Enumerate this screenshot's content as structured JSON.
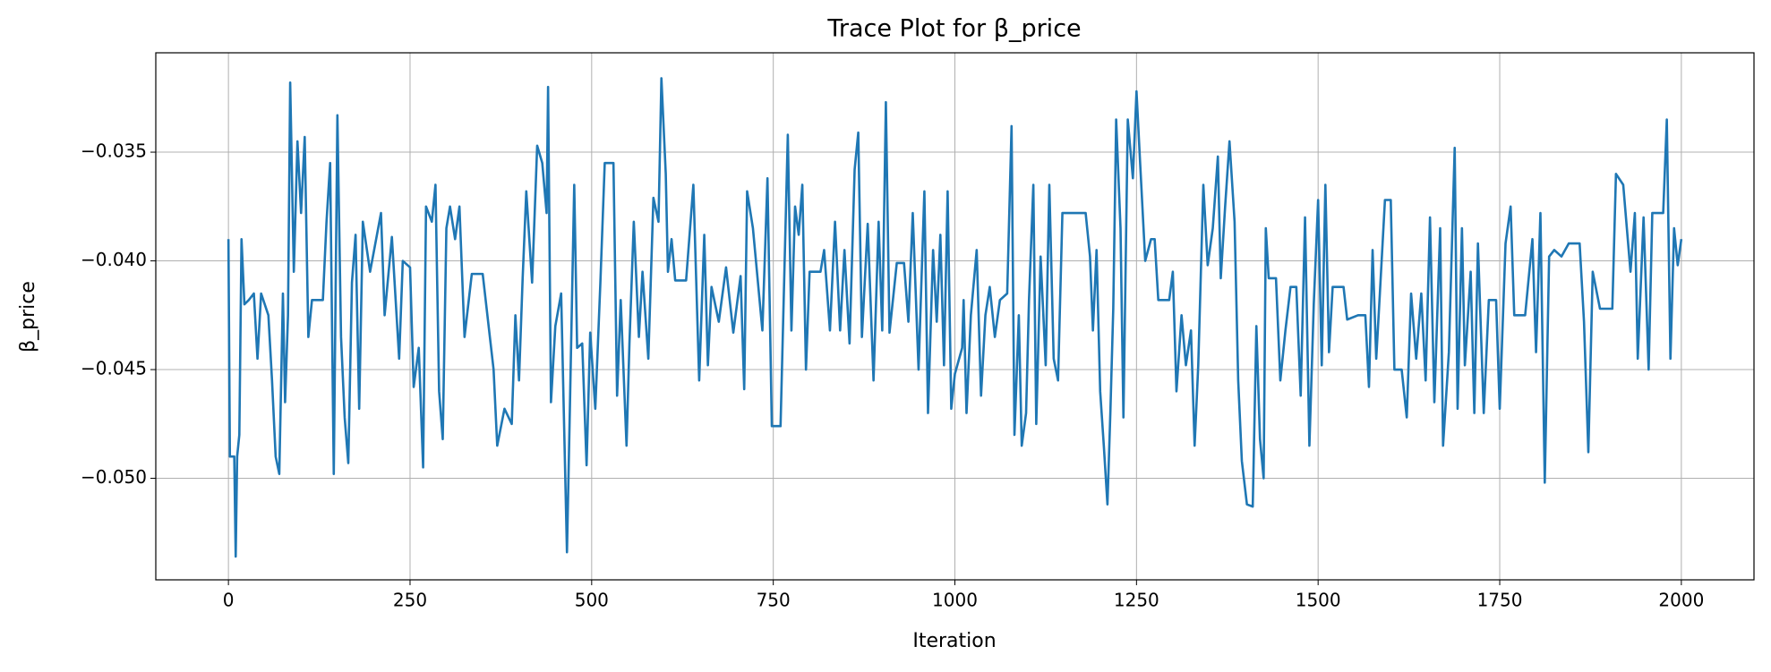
{
  "chart_data": {
    "type": "line",
    "title": "Trace Plot for β_price",
    "x_label": "Iteration",
    "y_label": "β_price",
    "color": "#1f77b4",
    "grid": true,
    "xlim": [
      -100,
      2100
    ],
    "ylim": [
      -0.05467,
      -0.03043
    ],
    "xticks": [
      0,
      250,
      500,
      750,
      1000,
      1250,
      1500,
      1750,
      2000
    ],
    "yticks": [
      {
        "value": -0.05,
        "label": "−0.050"
      },
      {
        "value": -0.045,
        "label": "−0.045"
      },
      {
        "value": -0.04,
        "label": "−0.040"
      },
      {
        "value": -0.035,
        "label": "−0.035"
      }
    ],
    "x": [
      0,
      2,
      8,
      10,
      12,
      15,
      18,
      22,
      28,
      35,
      40,
      45,
      55,
      60,
      65,
      70,
      75,
      78,
      82,
      85,
      90,
      95,
      100,
      105,
      110,
      115,
      130,
      135,
      140,
      145,
      150,
      155,
      160,
      165,
      170,
      175,
      180,
      185,
      195,
      210,
      215,
      225,
      235,
      240,
      250,
      255,
      262,
      268,
      272,
      280,
      285,
      290,
      295,
      300,
      305,
      312,
      318,
      325,
      335,
      350,
      365,
      370,
      380,
      390,
      395,
      400,
      405,
      410,
      418,
      425,
      432,
      438,
      440,
      444,
      450,
      458,
      466,
      470,
      476,
      480,
      487,
      493,
      498,
      505,
      512,
      518,
      530,
      535,
      540,
      548,
      552,
      558,
      565,
      570,
      578,
      585,
      592,
      596,
      602,
      605,
      610,
      615,
      630,
      640,
      648,
      655,
      660,
      665,
      675,
      685,
      695,
      705,
      710,
      714,
      722,
      735,
      742,
      748,
      760,
      770,
      775,
      780,
      785,
      790,
      795,
      800,
      815,
      820,
      828,
      835,
      842,
      848,
      855,
      862,
      867,
      872,
      880,
      888,
      895,
      900,
      905,
      910,
      920,
      930,
      936,
      942,
      950,
      958,
      963,
      970,
      975,
      980,
      985,
      990,
      995,
      1000,
      1010,
      1012,
      1016,
      1022,
      1030,
      1036,
      1042,
      1048,
      1055,
      1062,
      1072,
      1078,
      1082,
      1088,
      1092,
      1098,
      1102,
      1108,
      1112,
      1118,
      1125,
      1130,
      1136,
      1142,
      1148,
      1180,
      1186,
      1190,
      1195,
      1200,
      1205,
      1210,
      1214,
      1218,
      1222,
      1228,
      1232,
      1238,
      1245,
      1250,
      1255,
      1262,
      1270,
      1275,
      1280,
      1295,
      1300,
      1305,
      1312,
      1318,
      1325,
      1330,
      1335,
      1342,
      1348,
      1355,
      1362,
      1366,
      1372,
      1378,
      1385,
      1390,
      1395,
      1402,
      1410,
      1415,
      1420,
      1425,
      1428,
      1432,
      1442,
      1448,
      1455,
      1462,
      1470,
      1476,
      1482,
      1488,
      1494,
      1500,
      1505,
      1510,
      1515,
      1520,
      1535,
      1540,
      1555,
      1565,
      1570,
      1575,
      1580,
      1585,
      1592,
      1600,
      1605,
      1615,
      1622,
      1628,
      1635,
      1642,
      1648,
      1654,
      1660,
      1668,
      1672,
      1680,
      1688,
      1692,
      1698,
      1702,
      1710,
      1715,
      1720,
      1728,
      1735,
      1745,
      1750,
      1758,
      1765,
      1770,
      1785,
      1795,
      1800,
      1806,
      1812,
      1818,
      1825,
      1835,
      1845,
      1860,
      1866,
      1872,
      1878,
      1888,
      1905,
      1910,
      1920,
      1930,
      1936,
      1940,
      1948,
      1955,
      1960,
      1975,
      1980,
      1985,
      1990,
      1995,
      2000
    ],
    "values": [
      -0.039,
      -0.049,
      -0.049,
      -0.0536,
      -0.049,
      -0.048,
      -0.039,
      -0.042,
      -0.0418,
      -0.0415,
      -0.0445,
      -0.0415,
      -0.0425,
      -0.0455,
      -0.049,
      -0.0498,
      -0.0415,
      -0.0465,
      -0.0425,
      -0.0318,
      -0.0405,
      -0.0345,
      -0.0378,
      -0.0343,
      -0.0435,
      -0.0418,
      -0.0418,
      -0.0382,
      -0.0355,
      -0.0498,
      -0.0333,
      -0.0435,
      -0.0472,
      -0.0493,
      -0.041,
      -0.0388,
      -0.0468,
      -0.0382,
      -0.0405,
      -0.0378,
      -0.0425,
      -0.0389,
      -0.0445,
      -0.04,
      -0.0403,
      -0.0458,
      -0.044,
      -0.0495,
      -0.0375,
      -0.0382,
      -0.0365,
      -0.046,
      -0.0482,
      -0.0385,
      -0.0375,
      -0.039,
      -0.0375,
      -0.0435,
      -0.0406,
      -0.0406,
      -0.045,
      -0.0485,
      -0.0468,
      -0.0475,
      -0.0425,
      -0.0455,
      -0.0408,
      -0.0368,
      -0.041,
      -0.0347,
      -0.0355,
      -0.0378,
      -0.032,
      -0.0465,
      -0.043,
      -0.0415,
      -0.0534,
      -0.0468,
      -0.0365,
      -0.044,
      -0.0438,
      -0.0494,
      -0.0433,
      -0.0468,
      -0.041,
      -0.0355,
      -0.0355,
      -0.0462,
      -0.0418,
      -0.0485,
      -0.0438,
      -0.0382,
      -0.0435,
      -0.0405,
      -0.0445,
      -0.0371,
      -0.0382,
      -0.0316,
      -0.036,
      -0.0405,
      -0.039,
      -0.0409,
      -0.0409,
      -0.0365,
      -0.0455,
      -0.0388,
      -0.0448,
      -0.0412,
      -0.0428,
      -0.0403,
      -0.0433,
      -0.0407,
      -0.0459,
      -0.0368,
      -0.0385,
      -0.0432,
      -0.0362,
      -0.0476,
      -0.0476,
      -0.0342,
      -0.0432,
      -0.0375,
      -0.0388,
      -0.0365,
      -0.045,
      -0.0405,
      -0.0405,
      -0.0395,
      -0.0432,
      -0.0382,
      -0.0432,
      -0.0395,
      -0.0438,
      -0.0358,
      -0.0341,
      -0.0435,
      -0.0383,
      -0.0455,
      -0.0382,
      -0.0432,
      -0.0327,
      -0.0433,
      -0.0401,
      -0.0401,
      -0.0428,
      -0.0378,
      -0.045,
      -0.0368,
      -0.047,
      -0.0395,
      -0.0428,
      -0.0388,
      -0.0448,
      -0.0368,
      -0.0468,
      -0.0452,
      -0.044,
      -0.0418,
      -0.047,
      -0.0425,
      -0.0395,
      -0.0462,
      -0.0425,
      -0.0412,
      -0.0435,
      -0.0418,
      -0.0415,
      -0.0338,
      -0.048,
      -0.0425,
      -0.0485,
      -0.047,
      -0.0418,
      -0.0365,
      -0.0475,
      -0.0398,
      -0.0448,
      -0.0365,
      -0.0445,
      -0.0455,
      -0.0378,
      -0.0378,
      -0.0398,
      -0.0432,
      -0.0395,
      -0.046,
      -0.0485,
      -0.0512,
      -0.047,
      -0.0422,
      -0.0335,
      -0.0385,
      -0.0472,
      -0.0335,
      -0.0362,
      -0.0322,
      -0.0355,
      -0.04,
      -0.039,
      -0.039,
      -0.0418,
      -0.0418,
      -0.0405,
      -0.046,
      -0.0425,
      -0.0448,
      -0.0432,
      -0.0485,
      -0.0448,
      -0.0365,
      -0.0402,
      -0.0385,
      -0.0352,
      -0.0408,
      -0.0375,
      -0.0345,
      -0.0382,
      -0.0455,
      -0.0492,
      -0.0512,
      -0.0513,
      -0.043,
      -0.0482,
      -0.05,
      -0.0385,
      -0.0408,
      -0.0408,
      -0.0455,
      -0.0432,
      -0.0412,
      -0.0412,
      -0.0462,
      -0.038,
      -0.0485,
      -0.042,
      -0.0372,
      -0.0448,
      -0.0365,
      -0.0442,
      -0.0412,
      -0.0412,
      -0.0427,
      -0.0425,
      -0.0425,
      -0.0458,
      -0.0395,
      -0.0445,
      -0.0415,
      -0.0372,
      -0.0372,
      -0.045,
      -0.045,
      -0.0472,
      -0.0415,
      -0.0445,
      -0.0415,
      -0.0455,
      -0.038,
      -0.0465,
      -0.0385,
      -0.0485,
      -0.0442,
      -0.0348,
      -0.0468,
      -0.0385,
      -0.0448,
      -0.0405,
      -0.047,
      -0.0392,
      -0.047,
      -0.0418,
      -0.0418,
      -0.0468,
      -0.0392,
      -0.0375,
      -0.0425,
      -0.0425,
      -0.039,
      -0.0442,
      -0.0378,
      -0.0502,
      -0.0398,
      -0.0395,
      -0.0398,
      -0.0392,
      -0.0392,
      -0.0428,
      -0.0488,
      -0.0405,
      -0.0422,
      -0.0422,
      -0.036,
      -0.0365,
      -0.0405,
      -0.0378,
      -0.0445,
      -0.038,
      -0.045,
      -0.0378,
      -0.0378,
      -0.0335,
      -0.0445,
      -0.0385,
      -0.0402,
      -0.039
    ]
  }
}
